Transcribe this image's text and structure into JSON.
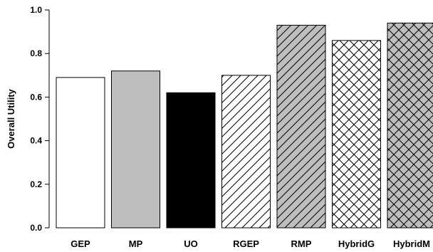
{
  "chart_data": {
    "type": "bar",
    "categories": [
      "GEP",
      "MP",
      "UO",
      "RGEP",
      "RMP",
      "HybridG",
      "HybridM"
    ],
    "values": [
      0.69,
      0.72,
      0.62,
      0.7,
      0.93,
      0.86,
      0.94
    ],
    "patterns": [
      "white",
      "gray",
      "black",
      "diagonal",
      "diagonal-gray",
      "crosshatch",
      "crosshatch-gray"
    ],
    "title": "",
    "xlabel": "",
    "ylabel": "Overall Utility",
    "ylim": [
      0.0,
      1.0
    ],
    "yticks": [
      "0.0",
      "0.2",
      "0.4",
      "0.6",
      "0.8",
      "1.0"
    ],
    "grid": false,
    "colors": {
      "gray": "#bebebe",
      "black": "#000000",
      "white": "#ffffff",
      "stroke": "#000000"
    }
  }
}
